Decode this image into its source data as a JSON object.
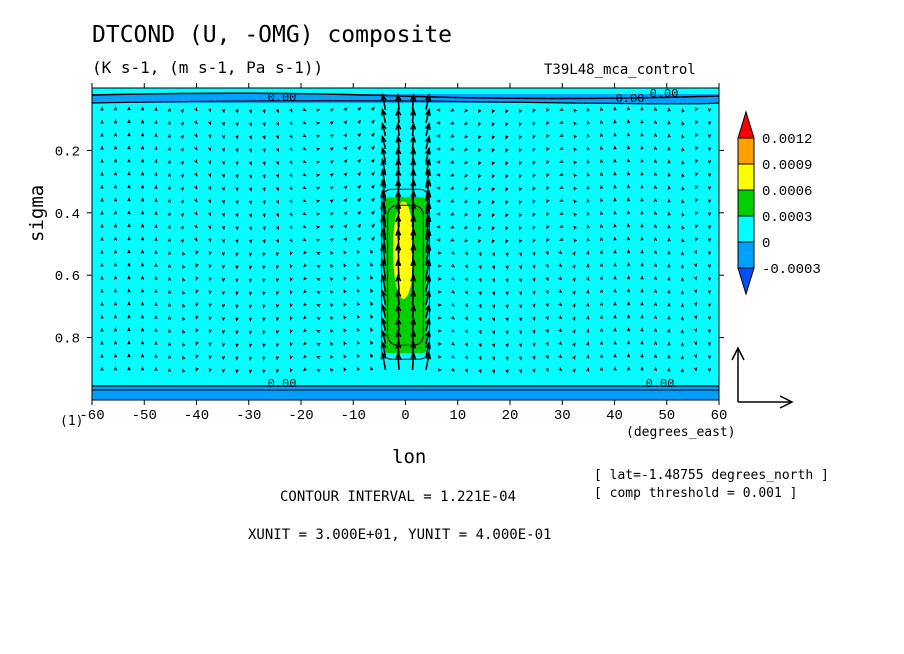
{
  "chart_data": {
    "type": "heatmap",
    "title": "DTCOND (U, -OMG) composite",
    "subtitle": "(K s-1, (m s-1, Pa s-1))",
    "run_label": "T39L48_mca_control",
    "xlabel": "lon",
    "x_units": "(degrees_east)",
    "ylabel": "sigma",
    "figure_number": "(1)",
    "xlim": [
      -60,
      60
    ],
    "ylim": [
      1.0,
      0.0
    ],
    "x_ticks": [
      "-60",
      "-50",
      "-40",
      "-30",
      "-20",
      "-10",
      "0",
      "10",
      "20",
      "30",
      "40",
      "50",
      "60"
    ],
    "y_ticks": [
      "0.2",
      "0.4",
      "0.6",
      "0.8"
    ],
    "colorbar": {
      "labels": [
        "0.0012",
        "0.0009",
        "0.0006",
        "0.0003",
        "0",
        "-0.0003"
      ],
      "colors": [
        "#ff0000",
        "#ffa000",
        "#ffff00",
        "#00d000",
        "#00ffff",
        "#00a0ff",
        "#0050ff"
      ]
    },
    "contour_labels": [
      "0.00",
      "0.00",
      "0.00",
      "0.00"
    ],
    "heating_core": {
      "lon_range": [
        -4,
        4
      ],
      "sigma_range": [
        0.35,
        0.85
      ],
      "peak_value": 0.0009
    },
    "vector": "(U, -OMG) wind vectors",
    "notes": {
      "lat": "[ lat=-1.48755 degrees_north ]",
      "threshold": "[ comp threshold = 0.001 ]",
      "contour_interval": "CONTOUR INTERVAL = 1.221E-04",
      "units": "XUNIT = 3.000E+01, YUNIT = 4.000E-01"
    }
  }
}
